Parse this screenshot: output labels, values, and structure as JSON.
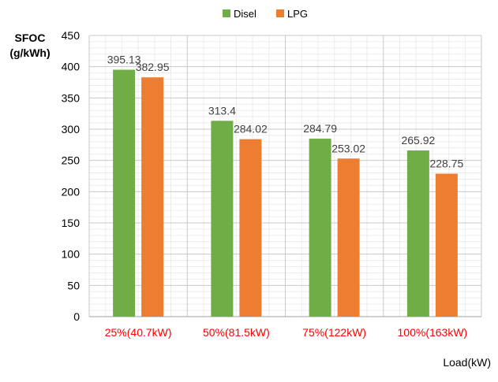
{
  "chart_data": {
    "type": "bar",
    "title": "",
    "ylabel_line1": "SFOC",
    "ylabel_line2": "(g/kWh)",
    "xlabel": "Load(kW)",
    "categories": [
      "25%(40.7kW)",
      "50%(81.5kW)",
      "75%(122kW)",
      "100%(163kW)"
    ],
    "series": [
      {
        "name": "Disel",
        "values": [
          395.13,
          313.4,
          284.79,
          265.92
        ],
        "value_labels": [
          "395.13",
          "313.4",
          "284.79",
          "265.92"
        ],
        "color": "#70ad47"
      },
      {
        "name": "LPG",
        "values": [
          382.95,
          284.02,
          253.02,
          228.75
        ],
        "value_labels": [
          "382.95",
          "284.02",
          "253.02",
          "228.75"
        ],
        "color": "#ed7d31"
      }
    ],
    "ylim": [
      0,
      450
    ],
    "yticks": [
      "0",
      "50",
      "100",
      "150",
      "200",
      "250",
      "300",
      "350",
      "400",
      "450"
    ],
    "grid": true,
    "legend_position": "top",
    "category_label_color": "#ff0000"
  }
}
